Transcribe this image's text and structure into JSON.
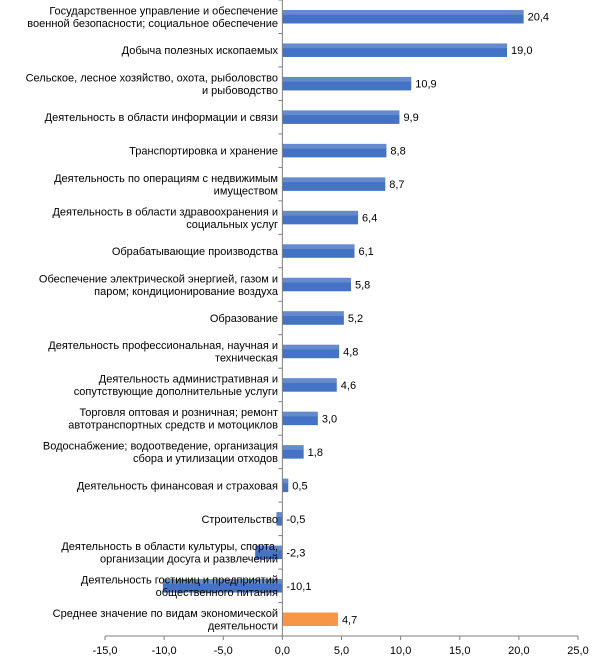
{
  "chart_data": {
    "type": "bar",
    "orientation": "horizontal",
    "categories": [
      [
        "Государственное управление и обеспечение",
        "военной безопасности; социальное обеспечение"
      ],
      [
        "Добыча полезных ископаемых"
      ],
      [
        "Сельское, лесное хозяйство, охота, рыболовство",
        "и рыбоводство"
      ],
      [
        "Деятельность в области информации и связи"
      ],
      [
        "Транспортировка и хранение"
      ],
      [
        "Деятельность по операциям с недвижимым",
        "имуществом"
      ],
      [
        "Деятельность в области здравоохранения и",
        "социальных услуг"
      ],
      [
        "Обрабатывающие производства"
      ],
      [
        "Обеспечение электрической энергией, газом и",
        "паром; кондиционирование воздуха"
      ],
      [
        "Образование"
      ],
      [
        "Деятельность профессиональная, научная и",
        "техническая"
      ],
      [
        "Деятельность административная и",
        "сопутствующие дополнительные услуги"
      ],
      [
        "Торговля оптовая и розничная; ремонт",
        "автотранспортных средств и мотоциклов"
      ],
      [
        "Водоснабжение; водоотведение, организация",
        "сбора и утилизации отходов"
      ],
      [
        "Деятельность финансовая и страховая"
      ],
      [
        "Строительство"
      ],
      [
        "Деятельность в области культуры, спорта,",
        "организации досуга и развлечений"
      ],
      [
        "Деятельность гостиниц и предприятий",
        "общественного питания"
      ],
      [
        "Среднее значение по видам экономической",
        "деятельности"
      ]
    ],
    "values": [
      20.4,
      19.0,
      10.9,
      9.9,
      8.8,
      8.7,
      6.4,
      6.1,
      5.8,
      5.2,
      4.8,
      4.6,
      3.0,
      1.8,
      0.5,
      -0.5,
      -2.3,
      -10.1,
      4.7
    ],
    "value_labels": [
      "20,4",
      "19,0",
      "10,9",
      "9,9",
      "8,8",
      "8,7",
      "6,4",
      "6,1",
      "5,8",
      "5,2",
      "4,8",
      "4,6",
      "3,0",
      "1,8",
      "0,5",
      "-0,5",
      "-2,3",
      "-10,1",
      "4,7"
    ],
    "highlight_index": 18,
    "colors": {
      "bar": "#4472C4",
      "highlight": "#F79646",
      "axis": "#7f7f7f"
    },
    "xlim": [
      -15,
      25
    ],
    "x_ticks": [
      -15,
      -10,
      -5,
      0,
      5,
      10,
      15,
      20,
      25
    ],
    "x_tick_labels": [
      "-15,0",
      "-10,0",
      "-5,0",
      "0,0",
      "5,0",
      "10,0",
      "15,0",
      "20,0",
      "25,0"
    ],
    "title": "",
    "xlabel": "",
    "ylabel": "",
    "grid": false,
    "legend": "none"
  }
}
